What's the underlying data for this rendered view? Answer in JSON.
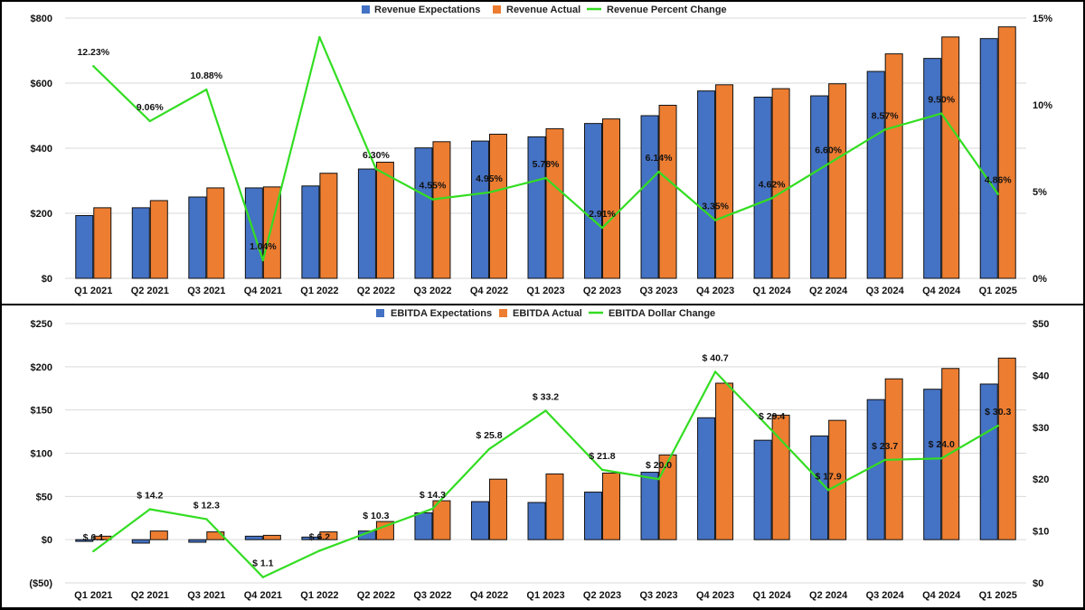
{
  "chart_data": [
    {
      "type": "bar",
      "title": "",
      "categories": [
        "Q1 2021",
        "Q2 2021",
        "Q3 2021",
        "Q4 2021",
        "Q1 2022",
        "Q2 2022",
        "Q3 2022",
        "Q4 2022",
        "Q1 2023",
        "Q2 2023",
        "Q3 2023",
        "Q4 2023",
        "Q1 2024",
        "Q2 2024",
        "Q3 2024",
        "Q4 2024",
        "Q1 2025"
      ],
      "series": [
        {
          "name": "Revenue Expectations",
          "axis": "left",
          "kind": "bar",
          "color": "#4472C4",
          "values": [
            193,
            217,
            250,
            278,
            284,
            336,
            401,
            422,
            435,
            476,
            500,
            576,
            557,
            561,
            636,
            676,
            737
          ]
        },
        {
          "name": "Revenue Actual",
          "axis": "left",
          "kind": "bar",
          "color": "#ED7D31",
          "values": [
            217,
            239,
            278,
            281,
            323,
            357,
            420,
            443,
            460,
            490,
            532,
            595,
            583,
            598,
            690,
            742,
            773
          ]
        },
        {
          "name": "Revenue Percent Change",
          "axis": "right",
          "kind": "line",
          "color": "#33DD22",
          "values": [
            12.23,
            9.06,
            10.88,
            1.04,
            13.9,
            6.3,
            4.55,
            4.95,
            5.78,
            2.91,
            6.14,
            3.35,
            4.62,
            6.6,
            8.57,
            9.5,
            4.86
          ],
          "labels": [
            "12.23%",
            "9.06%",
            "10.88%",
            "1.04%",
            "",
            "6.30%",
            "4.55%",
            "4.95%",
            "5.78%",
            "2.91%",
            "6.14%",
            "3.35%",
            "4.62%",
            "6.60%",
            "8.57%",
            "9.50%",
            "4.86%"
          ]
        }
      ],
      "y_left": {
        "ticks": [
          0,
          200,
          400,
          600,
          800
        ],
        "tick_labels": [
          "$0",
          "$200",
          "$400",
          "$600",
          "$800"
        ],
        "ylim": [
          0,
          800
        ]
      },
      "y_right": {
        "ticks": [
          0,
          5,
          10,
          15
        ],
        "tick_labels": [
          "0%",
          "5%",
          "10%",
          "15%"
        ],
        "ylim": [
          0,
          15
        ]
      },
      "legend_position": "top-center",
      "grid": true
    },
    {
      "type": "bar",
      "title": "",
      "categories": [
        "Q1 2021",
        "Q2 2021",
        "Q3 2021",
        "Q4 2021",
        "Q1 2022",
        "Q2 2022",
        "Q3 2022",
        "Q4 2022",
        "Q1 2023",
        "Q2 2023",
        "Q3 2023",
        "Q4 2023",
        "Q1 2024",
        "Q2 2024",
        "Q3 2024",
        "Q4 2024",
        "Q1 2025"
      ],
      "series": [
        {
          "name": "EBITDA Expectations",
          "axis": "left",
          "kind": "bar",
          "color": "#4472C4",
          "values": [
            -2,
            -4,
            -3,
            4,
            3,
            10,
            31,
            44,
            43,
            55,
            78,
            141,
            115,
            120,
            162,
            174,
            180
          ]
        },
        {
          "name": "EBITDA Actual",
          "axis": "left",
          "kind": "bar",
          "color": "#ED7D31",
          "values": [
            4,
            10,
            9,
            5,
            9,
            21,
            45,
            70,
            76,
            77,
            98,
            181,
            144,
            138,
            186,
            198,
            210
          ]
        },
        {
          "name": "EBITDA Dollar Change",
          "axis": "right",
          "kind": "line",
          "color": "#33DD22",
          "values": [
            6.1,
            14.2,
            12.3,
            1.1,
            6.2,
            10.3,
            14.3,
            25.8,
            33.2,
            21.8,
            20.0,
            40.7,
            29.4,
            17.9,
            23.7,
            24.0,
            30.3
          ],
          "labels": [
            "$ 6.1",
            "$ 14.2",
            "$ 12.3",
            "$ 1.1",
            "$ 6.2",
            "$ 10.3",
            "$ 14.3",
            "$ 25.8",
            "$ 33.2",
            "$ 21.8",
            "$ 20.0",
            "$ 40.7",
            "$ 29.4",
            "$ 17.9",
            "$ 23.7",
            "$ 24.0",
            "$ 30.3"
          ]
        }
      ],
      "y_left": {
        "ticks": [
          -50,
          0,
          50,
          100,
          150,
          200,
          250
        ],
        "tick_labels": [
          "($50)",
          "$0",
          "$50",
          "$100",
          "$150",
          "$200",
          "$250"
        ],
        "ylim": [
          -50,
          250
        ]
      },
      "y_right": {
        "ticks": [
          0,
          10,
          20,
          30,
          40,
          50
        ],
        "tick_labels": [
          "$0",
          "$10",
          "$20",
          "$30",
          "$40",
          "$50"
        ],
        "ylim": [
          0,
          50
        ]
      },
      "legend_position": "top-center",
      "grid": true
    }
  ]
}
